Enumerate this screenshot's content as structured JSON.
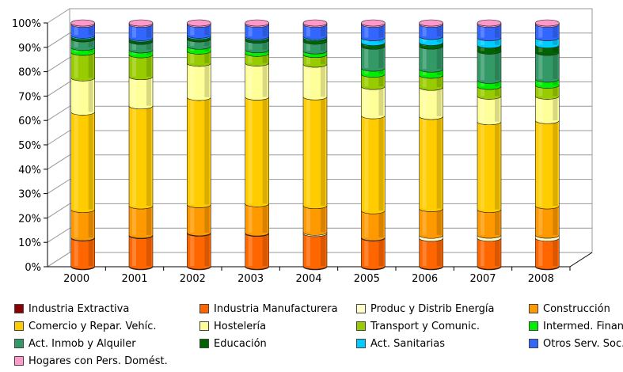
{
  "chart_data": {
    "type": "bar",
    "stacked": true,
    "percent": true,
    "three_d": true,
    "title": "",
    "xlabel": "",
    "ylabel": "",
    "ylim": [
      0,
      100
    ],
    "y_ticks": [
      "0%",
      "10%",
      "20%",
      "30%",
      "40%",
      "50%",
      "60%",
      "70%",
      "80%",
      "90%",
      "100%"
    ],
    "grid": true,
    "legend_position": "bottom",
    "categories": [
      "2000",
      "2001",
      "2002",
      "2003",
      "2004",
      "2005",
      "2006",
      "2007",
      "2008"
    ],
    "series": [
      {
        "name": "Industria Extractiva",
        "color": "#8B0000",
        "values": [
          0.3,
          0.3,
          0.3,
          0.3,
          0.3,
          0.3,
          0.3,
          0.3,
          0.3
        ]
      },
      {
        "name": "Industria Manufacturera",
        "color": "#FF6600",
        "values": [
          11.5,
          12.5,
          13.5,
          13.5,
          13.5,
          11.5,
          11.5,
          11.5,
          11.5
        ]
      },
      {
        "name": "Produc y Distrib Energía",
        "color": "#FFFFCC",
        "values": [
          0.2,
          0.2,
          0.2,
          0.2,
          0.5,
          0.2,
          1.2,
          1.2,
          1.2
        ]
      },
      {
        "name": "Construcción",
        "color": "#FF9900",
        "values": [
          11.5,
          12,
          11.5,
          12,
          11,
          11,
          11,
          10.5,
          12
        ]
      },
      {
        "name": "Comercio y Repar. Vehíc.",
        "color": "#FFCC00",
        "values": [
          40,
          41,
          44,
          44,
          45,
          39,
          38,
          36,
          35
        ]
      },
      {
        "name": "Hostelería",
        "color": "#FFFF99",
        "values": [
          14,
          12,
          14,
          14,
          13.5,
          12,
          12,
          10.5,
          10
        ]
      },
      {
        "name": "Transport y Comunic.",
        "color": "#99CC00",
        "values": [
          10.5,
          9,
          5,
          4,
          4,
          5,
          5,
          4,
          4.5
        ]
      },
      {
        "name": "Intermed. Financ.",
        "color": "#00EE00",
        "values": [
          2,
          2,
          2,
          1.5,
          1.5,
          2.5,
          2.5,
          2.5,
          2.5
        ]
      },
      {
        "name": "Act. Inmob y Alquiler",
        "color": "#339966",
        "values": [
          3.5,
          3.5,
          3,
          4,
          4,
          9,
          9.5,
          12,
          11
        ]
      },
      {
        "name": "Educación",
        "color": "#006400",
        "values": [
          1,
          1,
          1,
          1,
          1.5,
          1.5,
          1.5,
          2.5,
          3
        ]
      },
      {
        "name": "Act. Sanitarias",
        "color": "#00CCFF",
        "values": [
          0.5,
          0.5,
          0.5,
          0.5,
          0.5,
          2,
          2.5,
          3,
          3
        ]
      },
      {
        "name": "Otros Serv. Soc.",
        "color": "#3366FF",
        "values": [
          4.5,
          5.5,
          4.5,
          5,
          5,
          5.5,
          5,
          5.5,
          5.5
        ]
      },
      {
        "name": "Hogares con Pers. Domést.",
        "color": "#FF99CC",
        "values": [
          0.5,
          0.5,
          0.5,
          0.5,
          0.5,
          0.5,
          0.5,
          0.5,
          0.5
        ]
      }
    ]
  }
}
